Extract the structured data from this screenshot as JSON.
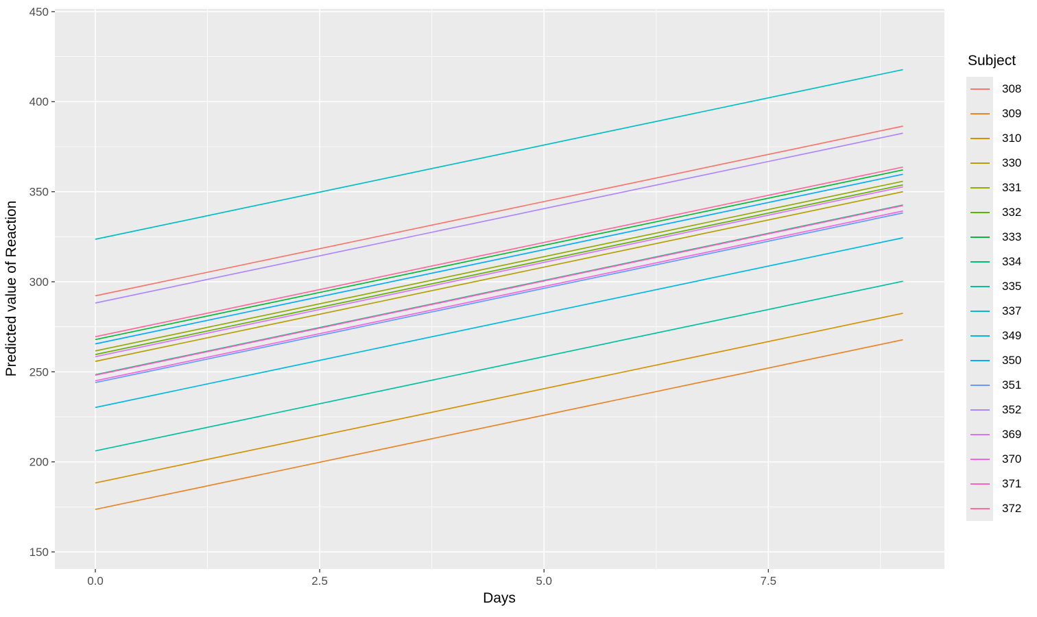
{
  "figure": {
    "background": "#FFFFFF",
    "panel_bg": "#EBEBEB",
    "grid_major_color": "#FFFFFF",
    "grid_minor_color": "#FFFFFF",
    "tick_mark_color": "#333333",
    "tick_label_color": "#4D4D4D",
    "axis_title_color": "#000000"
  },
  "chart_data": {
    "type": "line",
    "title": "",
    "xlabel": "Days",
    "ylabel": "Predicted value of Reaction",
    "legend_title": "Subject",
    "legend_position": "right",
    "grid": true,
    "xlim": [
      -0.451,
      9.462
    ],
    "ylim": [
      140.5,
      451.5
    ],
    "x_ticks": [
      {
        "value": 0,
        "label": "0.0"
      },
      {
        "value": 2.5,
        "label": "2.5"
      },
      {
        "value": 5,
        "label": "5.0"
      },
      {
        "value": 7.5,
        "label": "7.5"
      }
    ],
    "y_ticks": [
      {
        "value": 150,
        "label": "150"
      },
      {
        "value": 200,
        "label": "200"
      },
      {
        "value": 250,
        "label": "250"
      },
      {
        "value": 300,
        "label": "300"
      },
      {
        "value": 350,
        "label": "350"
      },
      {
        "value": 400,
        "label": "400"
      },
      {
        "value": 450,
        "label": "450"
      }
    ],
    "x_minor_ticks": [
      1.25,
      3.75,
      6.25,
      8.75
    ],
    "y_minor_ticks": [
      175,
      225,
      275,
      325,
      375,
      425
    ],
    "x": [
      0,
      9
    ],
    "series": [
      {
        "name": "308",
        "color": "#F8766D",
        "y": [
          292.2,
          386.4
        ]
      },
      {
        "name": "309",
        "color": "#E88526",
        "y": [
          173.6,
          267.8
        ]
      },
      {
        "name": "310",
        "color": "#D39200",
        "y": [
          188.3,
          282.5
        ]
      },
      {
        "name": "330",
        "color": "#B79F00",
        "y": [
          255.8,
          350.0
        ]
      },
      {
        "name": "331",
        "color": "#93AA00",
        "y": [
          261.6,
          355.8
        ]
      },
      {
        "name": "332",
        "color": "#5EB300",
        "y": [
          259.6,
          353.8
        ]
      },
      {
        "name": "333",
        "color": "#00BA38",
        "y": [
          267.9,
          362.1
        ]
      },
      {
        "name": "334",
        "color": "#00BF74",
        "y": [
          248.4,
          342.6
        ]
      },
      {
        "name": "335",
        "color": "#00C19F",
        "y": [
          206.1,
          300.3
        ]
      },
      {
        "name": "337",
        "color": "#00BFC4",
        "y": [
          323.6,
          417.8
        ]
      },
      {
        "name": "349",
        "color": "#00B9E3",
        "y": [
          230.2,
          324.4
        ]
      },
      {
        "name": "350",
        "color": "#00ADFA",
        "y": [
          265.5,
          359.7
        ]
      },
      {
        "name": "351",
        "color": "#619CFF",
        "y": [
          244.0,
          338.2
        ]
      },
      {
        "name": "352",
        "color": "#AE87FF",
        "y": [
          288.2,
          382.5
        ]
      },
      {
        "name": "369",
        "color": "#DB72FB",
        "y": [
          258.4,
          352.7
        ]
      },
      {
        "name": "370",
        "color": "#F564E3",
        "y": [
          245.0,
          339.3
        ]
      },
      {
        "name": "371",
        "color": "#FF61C3",
        "y": [
          248.1,
          342.3
        ]
      },
      {
        "name": "372",
        "color": "#FF699C",
        "y": [
          269.5,
          363.7
        ]
      }
    ]
  }
}
